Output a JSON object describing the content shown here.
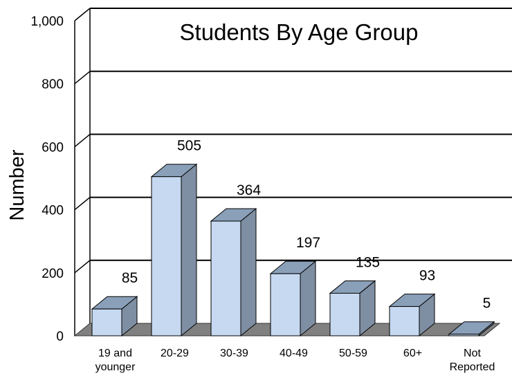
{
  "chart_data": {
    "type": "bar",
    "title": "Students By Age Group",
    "xlabel": "",
    "ylabel": "Number",
    "categories": [
      [
        "19 and",
        "younger"
      ],
      [
        "20-29"
      ],
      [
        "30-39"
      ],
      [
        "40-49"
      ],
      [
        "50-59"
      ],
      [
        "60+"
      ],
      [
        "Not",
        "Reported"
      ]
    ],
    "values": [
      85,
      505,
      364,
      197,
      135,
      93,
      5
    ],
    "ylim": [
      0,
      1000
    ],
    "yticks": [
      "0",
      "200",
      "400",
      "600",
      "800",
      "1,000"
    ],
    "grid": true,
    "three_d": true,
    "colors": {
      "bar_front": "#c6d9f1",
      "bar_top": "#8a9fb8",
      "bar_side": "#7f8fa3",
      "floor": "#808080",
      "gridline": "#000000"
    }
  }
}
